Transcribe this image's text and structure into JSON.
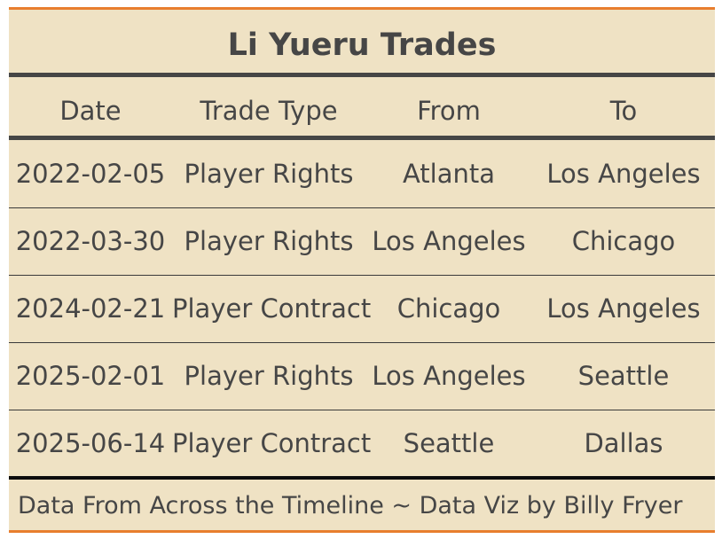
{
  "title": "Li Yueru Trades",
  "columns": [
    "Date",
    "Trade Type",
    "From",
    "To"
  ],
  "rows": [
    {
      "date": "2022-02-05",
      "type": "Player Rights",
      "from": "Atlanta",
      "to": "Los Angeles"
    },
    {
      "date": "2022-03-30",
      "type": "Player Rights",
      "from": "Los Angeles",
      "to": "Chicago"
    },
    {
      "date": "2024-02-21",
      "type": "Player Contract",
      "from": "Chicago",
      "to": "Los Angeles"
    },
    {
      "date": "2025-02-01",
      "type": "Player Rights",
      "from": "Los Angeles",
      "to": "Seattle"
    },
    {
      "date": "2025-06-14",
      "type": "Player Contract",
      "from": "Seattle",
      "to": "Dallas"
    }
  ],
  "footer": "Data From Across the Timeline ~ Data Viz by Billy Fryer",
  "colors": {
    "background": "#efe2c4",
    "accent": "#e87e2e",
    "text": "#464646"
  }
}
